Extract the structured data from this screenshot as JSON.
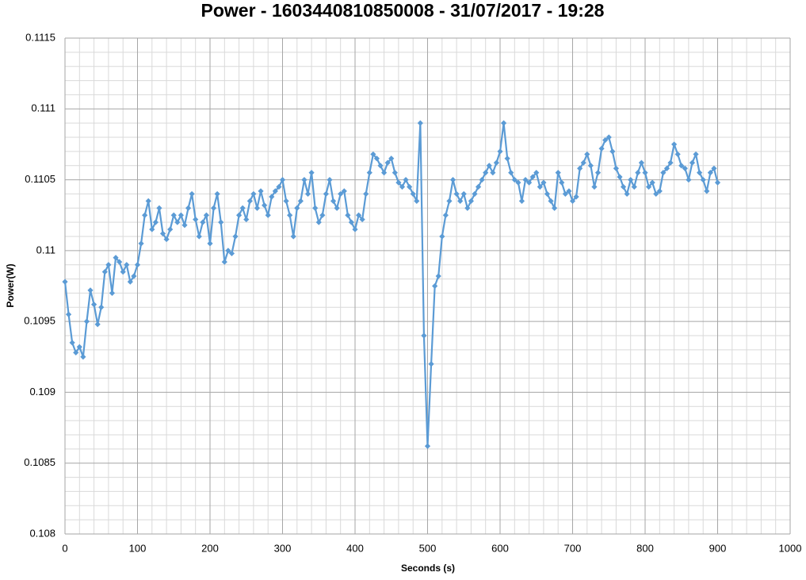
{
  "chart_data": {
    "type": "line",
    "title": "Power - 1603440810850008 - 31/07/2017 - 19:28",
    "x_label": "Seconds (s)",
    "y_label": "Power(W)",
    "xlim": [
      0,
      1000
    ],
    "xticks": [
      0,
      100,
      200,
      300,
      400,
      500,
      600,
      700,
      800,
      900,
      1000
    ],
    "ylim": [
      0.108,
      0.1115
    ],
    "yticks": [
      0.108,
      0.1085,
      0.109,
      0.1095,
      0.11,
      0.1105,
      0.111,
      0.1115
    ],
    "grid": true,
    "x": [
      0,
      5,
      10,
      15,
      20,
      25,
      30,
      35,
      40,
      45,
      50,
      55,
      60,
      65,
      70,
      75,
      80,
      85,
      90,
      95,
      100,
      105,
      110,
      115,
      120,
      125,
      130,
      135,
      140,
      145,
      150,
      155,
      160,
      165,
      170,
      175,
      180,
      185,
      190,
      195,
      200,
      205,
      210,
      215,
      220,
      225,
      230,
      235,
      240,
      245,
      250,
      255,
      260,
      265,
      270,
      275,
      280,
      285,
      290,
      295,
      300,
      305,
      310,
      315,
      320,
      325,
      330,
      335,
      340,
      345,
      350,
      355,
      360,
      365,
      370,
      375,
      380,
      385,
      390,
      395,
      400,
      405,
      410,
      415,
      420,
      425,
      430,
      435,
      440,
      445,
      450,
      455,
      460,
      465,
      470,
      475,
      480,
      485,
      490,
      495,
      500,
      505,
      510,
      515,
      520,
      525,
      530,
      535,
      540,
      545,
      550,
      555,
      560,
      565,
      570,
      575,
      580,
      585,
      590,
      595,
      600,
      605,
      610,
      615,
      620,
      625,
      630,
      635,
      640,
      645,
      650,
      655,
      660,
      665,
      670,
      675,
      680,
      685,
      690,
      695,
      700,
      705,
      710,
      715,
      720,
      725,
      730,
      735,
      740,
      745,
      750,
      755,
      760,
      765,
      770,
      775,
      780,
      785,
      790,
      795,
      800,
      805,
      810,
      815,
      820,
      825,
      830,
      835,
      840,
      845,
      850,
      855,
      860,
      865,
      870,
      875,
      880,
      885,
      890,
      895,
      900
    ],
    "series": [
      {
        "name": "Power",
        "color": "#5b9bd5",
        "values": [
          0.10978,
          0.10955,
          0.10935,
          0.10928,
          0.10932,
          0.10925,
          0.1095,
          0.10972,
          0.10962,
          0.10948,
          0.1096,
          0.10985,
          0.1099,
          0.1097,
          0.10995,
          0.10992,
          0.10985,
          0.1099,
          0.10978,
          0.10982,
          0.1099,
          0.11005,
          0.11025,
          0.11035,
          0.11015,
          0.1102,
          0.1103,
          0.11012,
          0.11008,
          0.11015,
          0.11025,
          0.1102,
          0.11025,
          0.11018,
          0.1103,
          0.1104,
          0.11022,
          0.1101,
          0.1102,
          0.11025,
          0.11005,
          0.1103,
          0.1104,
          0.1102,
          0.10992,
          0.11,
          0.10998,
          0.1101,
          0.11025,
          0.1103,
          0.11022,
          0.11035,
          0.1104,
          0.1103,
          0.11042,
          0.11032,
          0.11025,
          0.11038,
          0.11042,
          0.11045,
          0.1105,
          0.11035,
          0.11025,
          0.1101,
          0.1103,
          0.11035,
          0.1105,
          0.1104,
          0.11055,
          0.1103,
          0.1102,
          0.11025,
          0.1104,
          0.1105,
          0.11035,
          0.1103,
          0.1104,
          0.11042,
          0.11025,
          0.1102,
          0.11015,
          0.11025,
          0.11022,
          0.1104,
          0.11055,
          0.11068,
          0.11065,
          0.1106,
          0.11055,
          0.11062,
          0.11065,
          0.11055,
          0.11048,
          0.11045,
          0.1105,
          0.11045,
          0.1104,
          0.11035,
          0.1109,
          0.1094,
          0.10862,
          0.1092,
          0.10975,
          0.10982,
          0.1101,
          0.11025,
          0.11035,
          0.1105,
          0.1104,
          0.11035,
          0.1104,
          0.1103,
          0.11035,
          0.1104,
          0.11045,
          0.1105,
          0.11055,
          0.1106,
          0.11055,
          0.11062,
          0.1107,
          0.1109,
          0.11065,
          0.11055,
          0.1105,
          0.11048,
          0.11035,
          0.1105,
          0.11048,
          0.11052,
          0.11055,
          0.11045,
          0.11048,
          0.1104,
          0.11035,
          0.1103,
          0.11055,
          0.11048,
          0.1104,
          0.11042,
          0.11035,
          0.11038,
          0.11058,
          0.11062,
          0.11068,
          0.1106,
          0.11045,
          0.11055,
          0.11072,
          0.11078,
          0.1108,
          0.1107,
          0.11058,
          0.11052,
          0.11045,
          0.1104,
          0.1105,
          0.11045,
          0.11055,
          0.11062,
          0.11055,
          0.11045,
          0.11048,
          0.1104,
          0.11042,
          0.11055,
          0.11058,
          0.11062,
          0.11075,
          0.11068,
          0.1106,
          0.11058,
          0.1105,
          0.11062,
          0.11068,
          0.11055,
          0.1105,
          0.11042,
          0.11055,
          0.11058,
          0.11048
        ]
      }
    ]
  }
}
